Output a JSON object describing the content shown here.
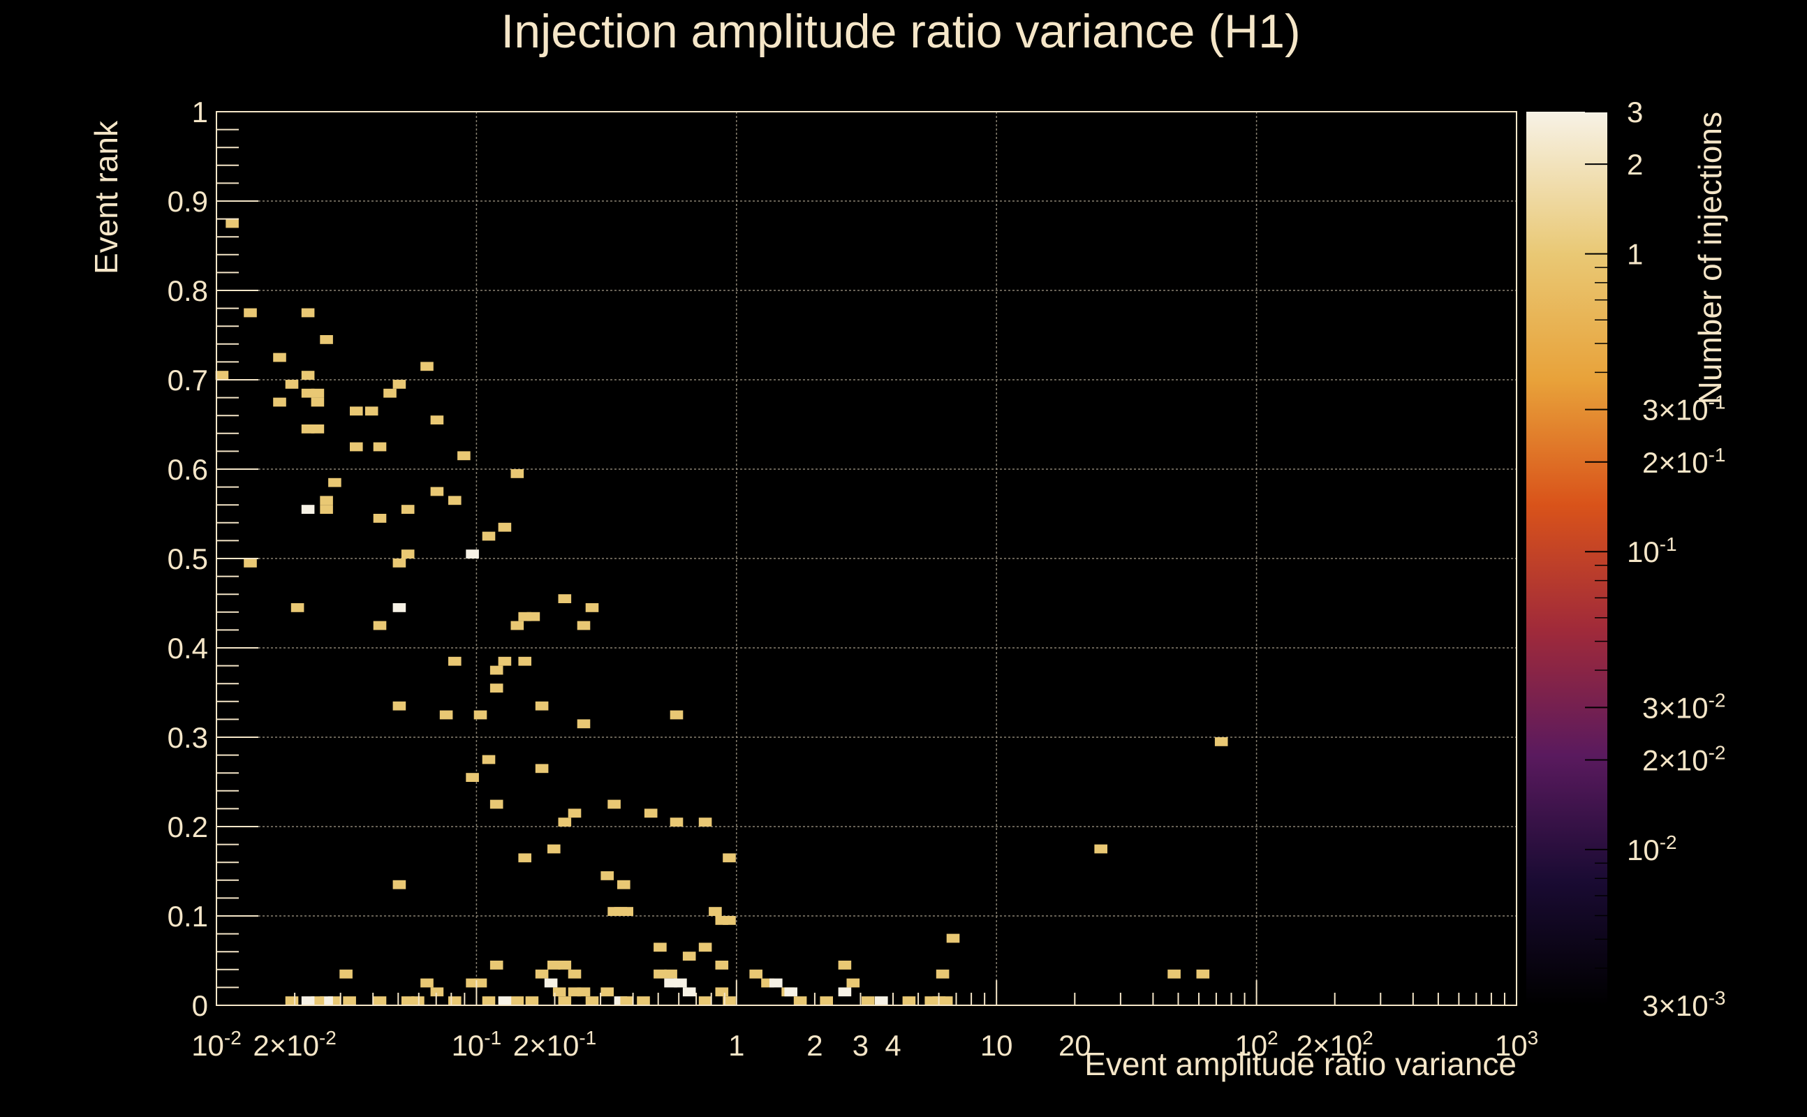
{
  "chart_data": {
    "type": "heatmap",
    "title": "Injection amplitude ratio variance (H1)",
    "xlabel": "Event amplitude ratio variance",
    "ylabel": "Event rank",
    "zlabel": "Number of injections",
    "x_scale": "log",
    "xlim": [
      0.01,
      1000
    ],
    "ylim": [
      0,
      1
    ],
    "zlim": [
      0.003,
      3
    ],
    "z_scale": "log",
    "grid": true,
    "colormap": [
      "#000000",
      "#1a0b33",
      "#5a1a5e",
      "#a02a3a",
      "#d9531a",
      "#e8a23a",
      "#e9c874",
      "#f7f2e6"
    ],
    "x_tick_labels": [
      "10-2",
      "2×10-2",
      "10-1",
      "2×10-1",
      "1",
      "2",
      "3",
      "4",
      "10",
      "20",
      "102",
      "2×102",
      "103"
    ],
    "y_tick_labels": [
      "0",
      "0.1",
      "0.2",
      "0.3",
      "0.4",
      "0.5",
      "0.6",
      "0.7",
      "0.8",
      "0.9",
      "1"
    ],
    "z_tick_labels": [
      "3",
      "2",
      "1",
      "3×10-1",
      "2×10-1",
      "10-1",
      "3×10-2",
      "2×10-2",
      "10-2",
      "3×10-3"
    ],
    "cells": [
      [
        0.0105,
        0.705,
        1
      ],
      [
        0.0115,
        0.875,
        1
      ],
      [
        0.0135,
        0.775,
        1
      ],
      [
        0.0135,
        0.495,
        1
      ],
      [
        0.0175,
        0.725,
        1
      ],
      [
        0.0175,
        0.675,
        1
      ],
      [
        0.0195,
        0.695,
        1
      ],
      [
        0.0205,
        0.445,
        1
      ],
      [
        0.0225,
        0.775,
        1
      ],
      [
        0.0225,
        0.705,
        1
      ],
      [
        0.0225,
        0.685,
        1
      ],
      [
        0.0225,
        0.645,
        1
      ],
      [
        0.0225,
        0.555,
        2
      ],
      [
        0.0245,
        0.685,
        1
      ],
      [
        0.0245,
        0.675,
        1
      ],
      [
        0.0245,
        0.645,
        1
      ],
      [
        0.0265,
        0.745,
        1
      ],
      [
        0.0265,
        0.565,
        1
      ],
      [
        0.0265,
        0.555,
        1
      ],
      [
        0.0285,
        0.585,
        1
      ],
      [
        0.0315,
        0.035,
        1
      ],
      [
        0.0345,
        0.665,
        1
      ],
      [
        0.0345,
        0.625,
        1
      ],
      [
        0.0395,
        0.665,
        1
      ],
      [
        0.0425,
        0.625,
        1
      ],
      [
        0.0425,
        0.545,
        1
      ],
      [
        0.0425,
        0.425,
        1
      ],
      [
        0.0465,
        0.685,
        1
      ],
      [
        0.0505,
        0.695,
        1
      ],
      [
        0.0505,
        0.495,
        1
      ],
      [
        0.0505,
        0.445,
        2
      ],
      [
        0.0505,
        0.335,
        1
      ],
      [
        0.0505,
        0.135,
        1
      ],
      [
        0.0545,
        0.555,
        1
      ],
      [
        0.0545,
        0.505,
        1
      ],
      [
        0.0645,
        0.715,
        1
      ],
      [
        0.0705,
        0.655,
        1
      ],
      [
        0.0705,
        0.575,
        1
      ],
      [
        0.0765,
        0.325,
        1
      ],
      [
        0.0825,
        0.565,
        1
      ],
      [
        0.0825,
        0.385,
        1
      ],
      [
        0.0895,
        0.615,
        1
      ],
      [
        0.0965,
        0.505,
        2
      ],
      [
        0.0965,
        0.255,
        1
      ],
      [
        0.1035,
        0.325,
        1
      ],
      [
        0.1115,
        0.525,
        1
      ],
      [
        0.1115,
        0.275,
        1
      ],
      [
        0.1195,
        0.375,
        1
      ],
      [
        0.1195,
        0.355,
        1
      ],
      [
        0.1195,
        0.225,
        1
      ],
      [
        0.1195,
        0.045,
        1
      ],
      [
        0.1285,
        0.535,
        1
      ],
      [
        0.1285,
        0.385,
        1
      ],
      [
        0.1435,
        0.595,
        1
      ],
      [
        0.1435,
        0.425,
        1
      ],
      [
        0.1535,
        0.435,
        1
      ],
      [
        0.1535,
        0.385,
        1
      ],
      [
        0.1535,
        0.165,
        1
      ],
      [
        0.1655,
        0.435,
        1
      ],
      [
        0.1785,
        0.335,
        1
      ],
      [
        0.1785,
        0.265,
        1
      ],
      [
        0.1985,
        0.175,
        1
      ],
      [
        0.2185,
        0.455,
        1
      ],
      [
        0.2185,
        0.205,
        1
      ],
      [
        0.2385,
        0.215,
        1
      ],
      [
        0.2585,
        0.425,
        1
      ],
      [
        0.2585,
        0.315,
        1
      ],
      [
        0.2785,
        0.445,
        1
      ],
      [
        0.3185,
        0.145,
        1
      ],
      [
        0.3385,
        0.225,
        1
      ],
      [
        0.3685,
        0.135,
        1
      ],
      [
        0.4685,
        0.215,
        1
      ],
      [
        0.5885,
        0.205,
        1
      ],
      [
        0.5885,
        0.325,
        1
      ],
      [
        0.7585,
        0.205,
        1
      ],
      [
        0.9385,
        0.165,
        1
      ],
      [
        0.3385,
        0.105,
        1
      ],
      [
        0.3585,
        0.105,
        1
      ],
      [
        0.3785,
        0.105,
        1
      ],
      [
        0.5085,
        0.065,
        1
      ],
      [
        0.5585,
        0.035,
        1
      ],
      [
        0.6585,
        0.055,
        1
      ],
      [
        0.7585,
        0.065,
        1
      ],
      [
        0.8285,
        0.105,
        1
      ],
      [
        0.8785,
        0.095,
        1
      ],
      [
        0.9385,
        0.095,
        1
      ],
      [
        0.8785,
        0.045,
        1
      ],
      [
        0.8785,
        0.015,
        1
      ],
      [
        0.1785,
        0.035,
        1
      ],
      [
        0.1985,
        0.045,
        1
      ],
      [
        0.2185,
        0.045,
        1
      ],
      [
        0.2385,
        0.035,
        1
      ],
      [
        0.1935,
        0.025,
        2
      ],
      [
        0.2085,
        0.015,
        1
      ],
      [
        0.2185,
        0.005,
        1
      ],
      [
        0.2385,
        0.015,
        1
      ],
      [
        0.1635,
        0.005,
        1
      ],
      [
        0.1435,
        0.005,
        1
      ],
      [
        0.1285,
        0.005,
        2
      ],
      [
        0.1115,
        0.005,
        1
      ],
      [
        0.0965,
        0.025,
        1
      ],
      [
        0.1035,
        0.025,
        1
      ],
      [
        0.0825,
        0.005,
        1
      ],
      [
        0.0705,
        0.015,
        1
      ],
      [
        0.0645,
        0.025,
        1
      ],
      [
        0.0595,
        0.005,
        1
      ],
      [
        0.0545,
        0.005,
        1
      ],
      [
        0.0425,
        0.005,
        1
      ],
      [
        0.0325,
        0.005,
        1
      ],
      [
        0.0285,
        0.005,
        1
      ],
      [
        0.0265,
        0.005,
        2
      ],
      [
        0.0245,
        0.005,
        1
      ],
      [
        0.0225,
        0.005,
        2
      ],
      [
        0.0195,
        0.005,
        1
      ],
      [
        0.2585,
        0.015,
        1
      ],
      [
        0.2785,
        0.005,
        1
      ],
      [
        0.3185,
        0.015,
        1
      ],
      [
        0.3585,
        0.005,
        2
      ],
      [
        0.3785,
        0.005,
        1
      ],
      [
        0.4385,
        0.005,
        1
      ],
      [
        0.5085,
        0.035,
        1
      ],
      [
        0.5585,
        0.025,
        2
      ],
      [
        0.6085,
        0.025,
        2
      ],
      [
        0.6585,
        0.015,
        2
      ],
      [
        0.7585,
        0.005,
        1
      ],
      [
        0.9385,
        0.005,
        1
      ],
      [
        1.1885,
        0.035,
        1
      ],
      [
        1.3185,
        0.025,
        1
      ],
      [
        1.4185,
        0.025,
        2
      ],
      [
        1.5785,
        0.015,
        1
      ],
      [
        1.6185,
        0.015,
        2
      ],
      [
        1.7585,
        0.005,
        1
      ],
      [
        2.2185,
        0.005,
        1
      ],
      [
        2.6085,
        0.045,
        1
      ],
      [
        2.6085,
        0.015,
        2
      ],
      [
        2.8085,
        0.025,
        1
      ],
      [
        3.2085,
        0.005,
        1
      ],
      [
        3.6085,
        0.005,
        2
      ],
      [
        4.6085,
        0.005,
        1
      ],
      [
        6.2085,
        0.035,
        1
      ],
      [
        6.8085,
        0.075,
        1
      ],
      [
        5.6085,
        0.005,
        1
      ],
      [
        6.0085,
        0.005,
        1
      ],
      [
        6.4085,
        0.005,
        1
      ],
      [
        25.2085,
        0.175,
        1
      ],
      [
        48.2085,
        0.035,
        1
      ],
      [
        62.2085,
        0.035,
        1
      ],
      [
        73.2085,
        0.295,
        1
      ]
    ]
  }
}
